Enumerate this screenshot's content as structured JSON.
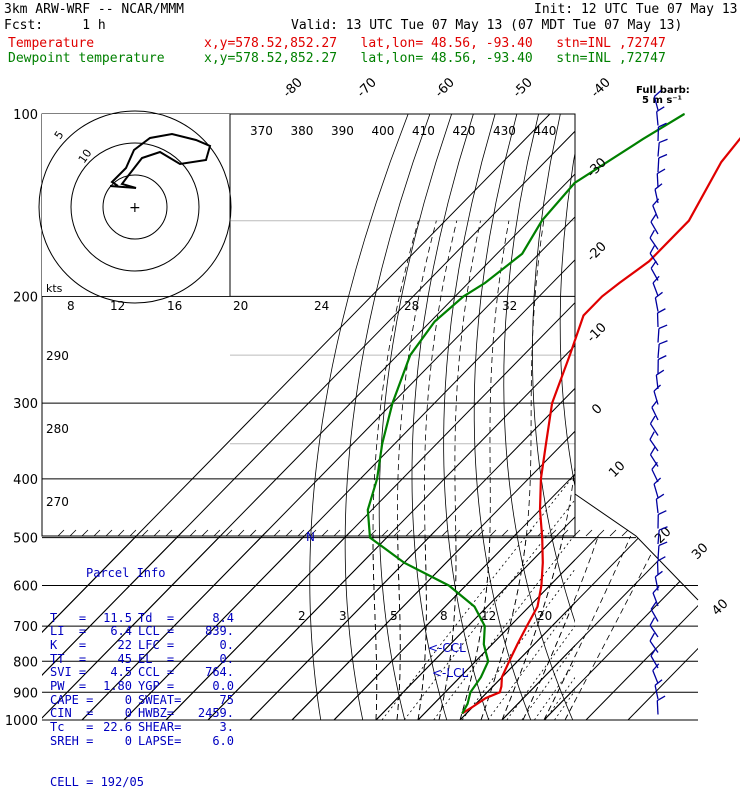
{
  "header": {
    "model": "3km ARW-WRF -- NCAR/MMM",
    "init": "Init: 12 UTC Tue 07 May 13",
    "fcst": "Fcst:     1 h",
    "valid": "Valid: 13 UTC Tue 07 May 13 (07 MDT Tue 07 May 13)",
    "temp_label": "Temperature",
    "temp_info": "x,y=578.52,852.27   lat,lon= 48.56, -93.40   stn=INL ,72747",
    "dew_label": "Dewpoint temperature",
    "dew_info": "x,y=578.52,852.27   lat,lon= 48.56, -93.40   stn=INL ,72747"
  },
  "colors": {
    "temperature": "#e00000",
    "dewpoint": "#008000",
    "parcel_info": "#0000c0",
    "grid": "#000000"
  },
  "wind_legend": {
    "line1": "Full barb:",
    "line2": "5 m s⁻¹"
  },
  "parcel": {
    "title": "Parcel Info",
    "rows": [
      [
        "T   =",
        "11.5",
        "Td  =",
        "8.4"
      ],
      [
        "LI  =",
        "6.4",
        "LCL =",
        "839."
      ],
      [
        "K   =",
        "22",
        "LFC =",
        "0."
      ],
      [
        "TT  =",
        "45",
        "EL  =",
        "0."
      ],
      [
        "SVI =",
        "4.5",
        "CCL =",
        "764."
      ],
      [
        "PW  =",
        "1.80",
        "YGP =",
        "0.0"
      ],
      [
        "CAPE =",
        "0",
        "SWEAT=",
        "75"
      ],
      [
        "CIN  =",
        "0",
        "HWBZ=",
        "2459."
      ],
      [
        "Tc   =",
        "22.6",
        "SHEAR=",
        "3."
      ],
      [
        "SREH =",
        "0",
        "LAPSE=",
        "6.0"
      ]
    ],
    "cell": "CELL = 192/05"
  },
  "chart_data": {
    "type": "line",
    "title": "",
    "xlabel": "",
    "ylabel": "",
    "pressure_levels": [
      100,
      200,
      300,
      400,
      500,
      600,
      700,
      800,
      900,
      1000
    ],
    "temperature_ticks": [
      -80,
      -70,
      -60,
      -50,
      -40,
      -30,
      -20,
      -10,
      0,
      10,
      20,
      30,
      40
    ],
    "theta_labels": [
      370,
      380,
      390,
      400,
      410,
      420,
      430,
      440
    ],
    "theta_side_labels": [
      290,
      280,
      270
    ],
    "mixing_ratio_labels_top": [
      8,
      12,
      16,
      20,
      24,
      28,
      32
    ],
    "mixing_ratio_labels_bottom": [
      2,
      3,
      5,
      8,
      12,
      20
    ],
    "lcl_marker": "<-CCL",
    "lcl_marker2": "<-LCL",
    "hodograph": {
      "rings": [
        "5",
        "10"
      ],
      "units": "kts"
    },
    "series": [
      {
        "name": "Temperature",
        "pressure": [
          100,
          120,
          150,
          175,
          190,
          200,
          215,
          250,
          300,
          350,
          400,
          450,
          500,
          550,
          600,
          650,
          700,
          750,
          800,
          850,
          880,
          900,
          920,
          950,
          975
        ],
        "values": [
          -60,
          -58,
          -52,
          -52,
          -54,
          -55,
          -55,
          -49,
          -42,
          -34,
          -27,
          -20,
          -13,
          -7,
          -2,
          2,
          4,
          6,
          8,
          10,
          12,
          13,
          11,
          10,
          9
        ]
      },
      {
        "name": "Dewpoint temperature",
        "pressure": [
          100,
          110,
          130,
          150,
          170,
          190,
          200,
          220,
          250,
          300,
          350,
          400,
          450,
          500,
          550,
          600,
          650,
          700,
          750,
          800,
          850,
          900,
          940,
          975
        ],
        "values": [
          -78,
          -82,
          -88,
          -87,
          -84,
          -86,
          -88,
          -89,
          -87,
          -80,
          -73,
          -66,
          -61,
          -54,
          -40,
          -24,
          -13,
          -6,
          -2,
          3,
          5,
          6,
          8,
          9
        ]
      }
    ],
    "annotation": "N"
  }
}
